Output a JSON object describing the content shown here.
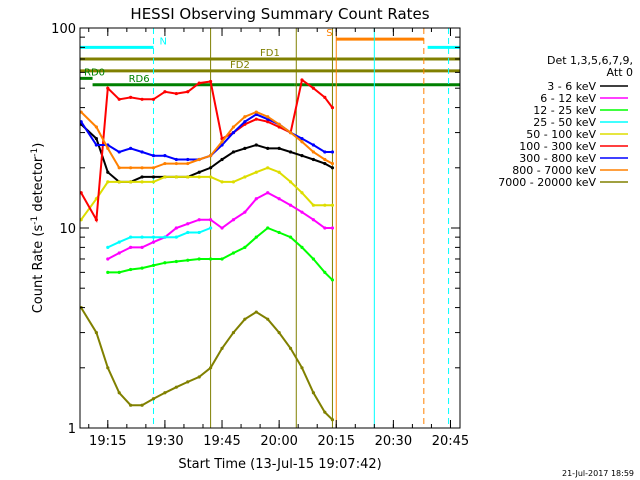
{
  "chart_data": {
    "type": "line",
    "title": "HESSI Observing Summary Count Rates",
    "xlabel": "Start Time (13-Jul-15 19:07:42)",
    "ylabel": "Count Rate (s⁻¹ detector⁻¹)",
    "ylabel_main": "Count Rate (s",
    "ylabel_sup1": "-1",
    "ylabel_mid": " detector",
    "ylabel_sup2": "-1",
    "ylabel_end": ")",
    "y_scale": "log",
    "ylim": [
      1,
      100
    ],
    "xlim": [
      "19:07:42",
      "20:47:30"
    ],
    "x_ticks": [
      "19:15",
      "19:30",
      "19:45",
      "20:00",
      "20:15",
      "20:30",
      "20:45"
    ],
    "y_ticks": [
      "1",
      "10",
      "100"
    ],
    "date_stamp": "21-Jul-2017 18:59",
    "legend": {
      "placement": "right",
      "header": [
        "Det 1,3,5,6,7,9,",
        "Att 0"
      ],
      "entries": [
        {
          "label": "3 - 6 keV",
          "color": "#000000"
        },
        {
          "label": "6 - 12 keV",
          "color": "#ff00ff"
        },
        {
          "label": "12 - 25 keV",
          "color": "#00ff00"
        },
        {
          "label": "25 - 50 keV",
          "color": "#00ffff"
        },
        {
          "label": "50 - 100 keV",
          "color": "#dddd00"
        },
        {
          "label": "100 - 300 keV",
          "color": "#ff0000"
        },
        {
          "label": "300 - 800 keV",
          "color": "#0000ff"
        },
        {
          "label": "800 - 7000 keV",
          "color": "#ff8000"
        },
        {
          "label": "7000 - 20000 keV",
          "color": "#808000"
        }
      ]
    },
    "flags": [
      {
        "label": "N",
        "color": "#00ffff",
        "segments": [
          [
            "19:07:42",
            "19:27:00"
          ],
          [
            "20:39:00",
            "20:47:30"
          ]
        ],
        "y": 80
      },
      {
        "label": "S",
        "color": "#ff8000",
        "segments": [
          [
            "20:15:00",
            "20:38:00"
          ]
        ],
        "y": 88
      },
      {
        "label": "FD1",
        "color": "#808000",
        "segments": [
          [
            "19:07:42",
            "20:47:30"
          ]
        ],
        "y": 70
      },
      {
        "label": "FD2",
        "color": "#808000",
        "segments": [
          [
            "19:07:42",
            "20:47:30"
          ]
        ],
        "y": 61
      },
      {
        "label": "RD0",
        "color": "#008000",
        "segments": [
          [
            "19:07:42",
            "19:11:00"
          ]
        ],
        "y": 56
      },
      {
        "label": "RD6",
        "color": "#008000",
        "segments": [
          [
            "19:11:00",
            "19:42:00"
          ],
          [
            "19:42:00",
            "20:04:00"
          ],
          [
            "20:04:00",
            "20:47:30"
          ]
        ],
        "y": 52
      }
    ],
    "vertical_markers": [
      {
        "time": "19:27:00",
        "color": "#00ffff",
        "style": "dashed"
      },
      {
        "time": "19:42:00",
        "color": "#808000",
        "style": "solid"
      },
      {
        "time": "20:04:30",
        "color": "#808000",
        "style": "solid"
      },
      {
        "time": "20:14:00",
        "color": "#808000",
        "style": "solid"
      },
      {
        "time": "20:15:00",
        "color": "#ff8000",
        "style": "solid"
      },
      {
        "time": "20:25:00",
        "color": "#00ffff",
        "style": "solid"
      },
      {
        "time": "20:38:00",
        "color": "#ff8000",
        "style": "dashed"
      },
      {
        "time": "20:44:30",
        "color": "#00ffff",
        "style": "dashed"
      }
    ],
    "x": [
      "19:08",
      "19:12",
      "19:15",
      "19:18",
      "19:21",
      "19:24",
      "19:27",
      "19:30",
      "19:33",
      "19:36",
      "19:39",
      "19:42",
      "19:45",
      "19:48",
      "19:51",
      "19:54",
      "19:57",
      "20:00",
      "20:03",
      "20:06",
      "20:09",
      "20:12",
      "20:14"
    ],
    "series": [
      {
        "name": "3 - 6 keV",
        "color": "#000000",
        "values": [
          33,
          28,
          19,
          17,
          17,
          18,
          18,
          18,
          18,
          18,
          19,
          20,
          22,
          24,
          25,
          26,
          25,
          25,
          24,
          23,
          22,
          21,
          20
        ]
      },
      {
        "name": "6 - 12 keV",
        "color": "#ff00ff",
        "values": [
          null,
          null,
          7,
          7.5,
          8,
          8,
          8.5,
          9,
          10,
          10.5,
          11,
          11,
          10,
          11,
          12,
          14,
          15,
          14,
          13,
          12,
          11,
          10,
          10
        ]
      },
      {
        "name": "12 - 25 keV",
        "color": "#00ff00",
        "values": [
          null,
          null,
          6,
          6,
          6.2,
          6.3,
          6.5,
          6.7,
          6.8,
          6.9,
          7,
          7,
          7,
          7.5,
          8,
          9,
          10,
          9.5,
          9,
          8,
          7,
          6,
          5.5
        ]
      },
      {
        "name": "25 - 50 keV",
        "color": "#00ffff",
        "values": [
          null,
          null,
          8,
          8.5,
          9,
          9,
          9,
          9,
          9,
          9.5,
          9.5,
          10,
          null,
          null,
          null,
          null,
          null,
          null,
          null,
          null,
          null,
          null,
          null
        ]
      },
      {
        "name": "50 - 100 keV",
        "color": "#dddd00",
        "values": [
          11,
          14,
          17,
          17,
          17,
          17,
          17,
          18,
          18,
          18,
          18,
          18,
          17,
          17,
          18,
          19,
          20,
          19,
          17,
          15,
          13,
          13,
          13
        ]
      },
      {
        "name": "100 - 300 keV",
        "color": "#ff0000",
        "values": [
          15,
          11,
          50,
          44,
          45,
          44,
          44,
          48,
          47,
          48,
          53,
          54,
          28,
          30,
          33,
          35,
          34,
          32,
          30,
          55,
          50,
          45,
          40
        ]
      },
      {
        "name": "300 - 800 keV",
        "color": "#0000ff",
        "values": [
          34,
          26,
          26,
          24,
          25,
          24,
          23,
          23,
          22,
          22,
          22,
          23,
          26,
          30,
          34,
          37,
          35,
          33,
          30,
          28,
          26,
          24,
          24
        ]
      },
      {
        "name": "800 - 7000 keV",
        "color": "#ff8000",
        "values": [
          38,
          32,
          25,
          20,
          20,
          20,
          20,
          21,
          21,
          21,
          22,
          23,
          27,
          32,
          36,
          38,
          36,
          33,
          30,
          27,
          24,
          22,
          21
        ]
      },
      {
        "name": "7000 - 20000 keV",
        "color": "#808000",
        "values": [
          4,
          3,
          2,
          1.5,
          1.3,
          1.3,
          1.4,
          1.5,
          1.6,
          1.7,
          1.8,
          2,
          2.5,
          3,
          3.5,
          3.8,
          3.5,
          3,
          2.5,
          2,
          1.5,
          1.2,
          1.1
        ]
      }
    ]
  }
}
